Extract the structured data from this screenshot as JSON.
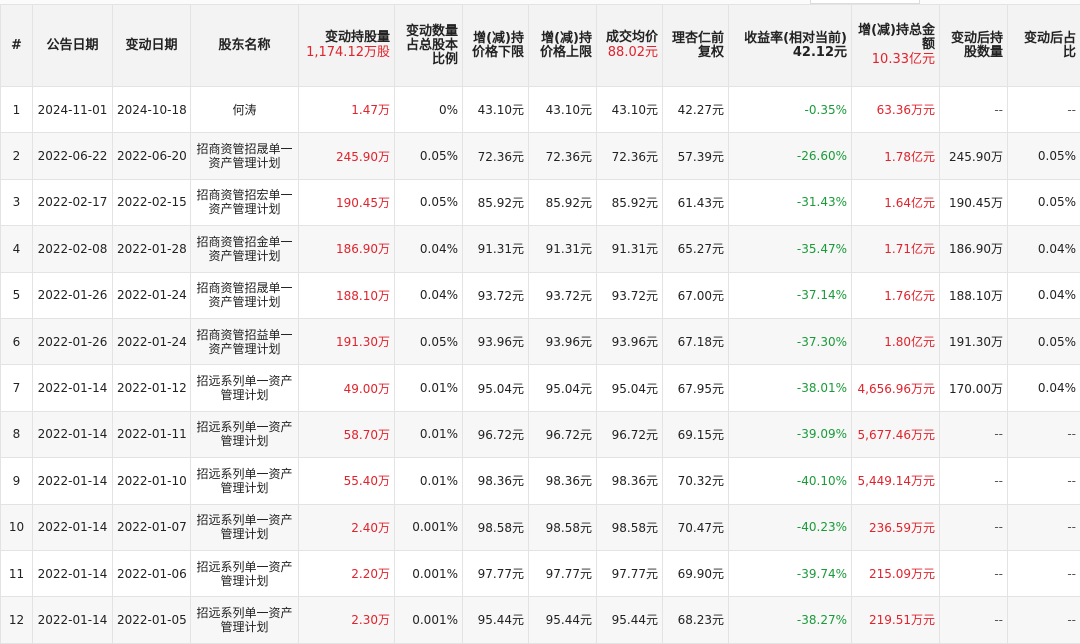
{
  "headers": {
    "index": "#",
    "announce_date": "公告日期",
    "change_date": "变动日期",
    "holder_name": "股东名称",
    "change_qty": "变动持股量",
    "change_qty_total": "1,174.12万股",
    "change_ratio": "变动数量占总股本比例",
    "low_price": "增(减)持价格下限",
    "high_price": "增(减)持价格上限",
    "avg_price": "成交均价",
    "avg_price_total": "88.02元",
    "adj_price": "理杏仁前复权",
    "return_rate": "收益率(相对当前)",
    "return_rate_ref": "42.12元",
    "amount": "增(减)持总金额",
    "amount_total": "10.33亿元",
    "after_qty": "变动后持股数量",
    "after_ratio": "变动后占比"
  },
  "rows": [
    {
      "idx": "1",
      "announce": "2024-11-01",
      "change": "2024-10-18",
      "name": "何涛",
      "qty": "1.47万",
      "ratio": "0%",
      "low": "43.10元",
      "high": "43.10元",
      "avg": "43.10元",
      "adj": "42.27元",
      "ret": "-0.35%",
      "amount": "63.36万元",
      "after_qty": "--",
      "after_ratio": "--"
    },
    {
      "idx": "2",
      "announce": "2022-06-22",
      "change": "2022-06-20",
      "name": "招商资管招晟单一资产管理计划",
      "qty": "245.90万",
      "ratio": "0.05%",
      "low": "72.36元",
      "high": "72.36元",
      "avg": "72.36元",
      "adj": "57.39元",
      "ret": "-26.60%",
      "amount": "1.78亿元",
      "after_qty": "245.90万",
      "after_ratio": "0.05%"
    },
    {
      "idx": "3",
      "announce": "2022-02-17",
      "change": "2022-02-15",
      "name": "招商资管招宏单一资产管理计划",
      "qty": "190.45万",
      "ratio": "0.05%",
      "low": "85.92元",
      "high": "85.92元",
      "avg": "85.92元",
      "adj": "61.43元",
      "ret": "-31.43%",
      "amount": "1.64亿元",
      "after_qty": "190.45万",
      "after_ratio": "0.05%"
    },
    {
      "idx": "4",
      "announce": "2022-02-08",
      "change": "2022-01-28",
      "name": "招商资管招金单一资产管理计划",
      "qty": "186.90万",
      "ratio": "0.04%",
      "low": "91.31元",
      "high": "91.31元",
      "avg": "91.31元",
      "adj": "65.27元",
      "ret": "-35.47%",
      "amount": "1.71亿元",
      "after_qty": "186.90万",
      "after_ratio": "0.04%"
    },
    {
      "idx": "5",
      "announce": "2022-01-26",
      "change": "2022-01-24",
      "name": "招商资管招晟单一资产管理计划",
      "qty": "188.10万",
      "ratio": "0.04%",
      "low": "93.72元",
      "high": "93.72元",
      "avg": "93.72元",
      "adj": "67.00元",
      "ret": "-37.14%",
      "amount": "1.76亿元",
      "after_qty": "188.10万",
      "after_ratio": "0.04%"
    },
    {
      "idx": "6",
      "announce": "2022-01-26",
      "change": "2022-01-24",
      "name": "招商资管招益单一资产管理计划",
      "qty": "191.30万",
      "ratio": "0.05%",
      "low": "93.96元",
      "high": "93.96元",
      "avg": "93.96元",
      "adj": "67.18元",
      "ret": "-37.30%",
      "amount": "1.80亿元",
      "after_qty": "191.30万",
      "after_ratio": "0.05%"
    },
    {
      "idx": "7",
      "announce": "2022-01-14",
      "change": "2022-01-12",
      "name": "招远系列单一资产管理计划",
      "qty": "49.00万",
      "ratio": "0.01%",
      "low": "95.04元",
      "high": "95.04元",
      "avg": "95.04元",
      "adj": "67.95元",
      "ret": "-38.01%",
      "amount": "4,656.96万元",
      "after_qty": "170.00万",
      "after_ratio": "0.04%"
    },
    {
      "idx": "8",
      "announce": "2022-01-14",
      "change": "2022-01-11",
      "name": "招远系列单一资产管理计划",
      "qty": "58.70万",
      "ratio": "0.01%",
      "low": "96.72元",
      "high": "96.72元",
      "avg": "96.72元",
      "adj": "69.15元",
      "ret": "-39.09%",
      "amount": "5,677.46万元",
      "after_qty": "--",
      "after_ratio": "--"
    },
    {
      "idx": "9",
      "announce": "2022-01-14",
      "change": "2022-01-10",
      "name": "招远系列单一资产管理计划",
      "qty": "55.40万",
      "ratio": "0.01%",
      "low": "98.36元",
      "high": "98.36元",
      "avg": "98.36元",
      "adj": "70.32元",
      "ret": "-40.10%",
      "amount": "5,449.14万元",
      "after_qty": "--",
      "after_ratio": "--"
    },
    {
      "idx": "10",
      "announce": "2022-01-14",
      "change": "2022-01-07",
      "name": "招远系列单一资产管理计划",
      "qty": "2.40万",
      "ratio": "0.001%",
      "low": "98.58元",
      "high": "98.58元",
      "avg": "98.58元",
      "adj": "70.47元",
      "ret": "-40.23%",
      "amount": "236.59万元",
      "after_qty": "--",
      "after_ratio": "--"
    },
    {
      "idx": "11",
      "announce": "2022-01-14",
      "change": "2022-01-06",
      "name": "招远系列单一资产管理计划",
      "qty": "2.20万",
      "ratio": "0.001%",
      "low": "97.77元",
      "high": "97.77元",
      "avg": "97.77元",
      "adj": "69.90元",
      "ret": "-39.74%",
      "amount": "215.09万元",
      "after_qty": "--",
      "after_ratio": "--"
    },
    {
      "idx": "12",
      "announce": "2022-01-14",
      "change": "2022-01-05",
      "name": "招远系列单一资产管理计划",
      "qty": "2.30万",
      "ratio": "0.001%",
      "low": "95.44元",
      "high": "95.44元",
      "avg": "95.44元",
      "adj": "68.23元",
      "ret": "-38.27%",
      "amount": "219.51万元",
      "after_qty": "--",
      "after_ratio": "--"
    }
  ]
}
